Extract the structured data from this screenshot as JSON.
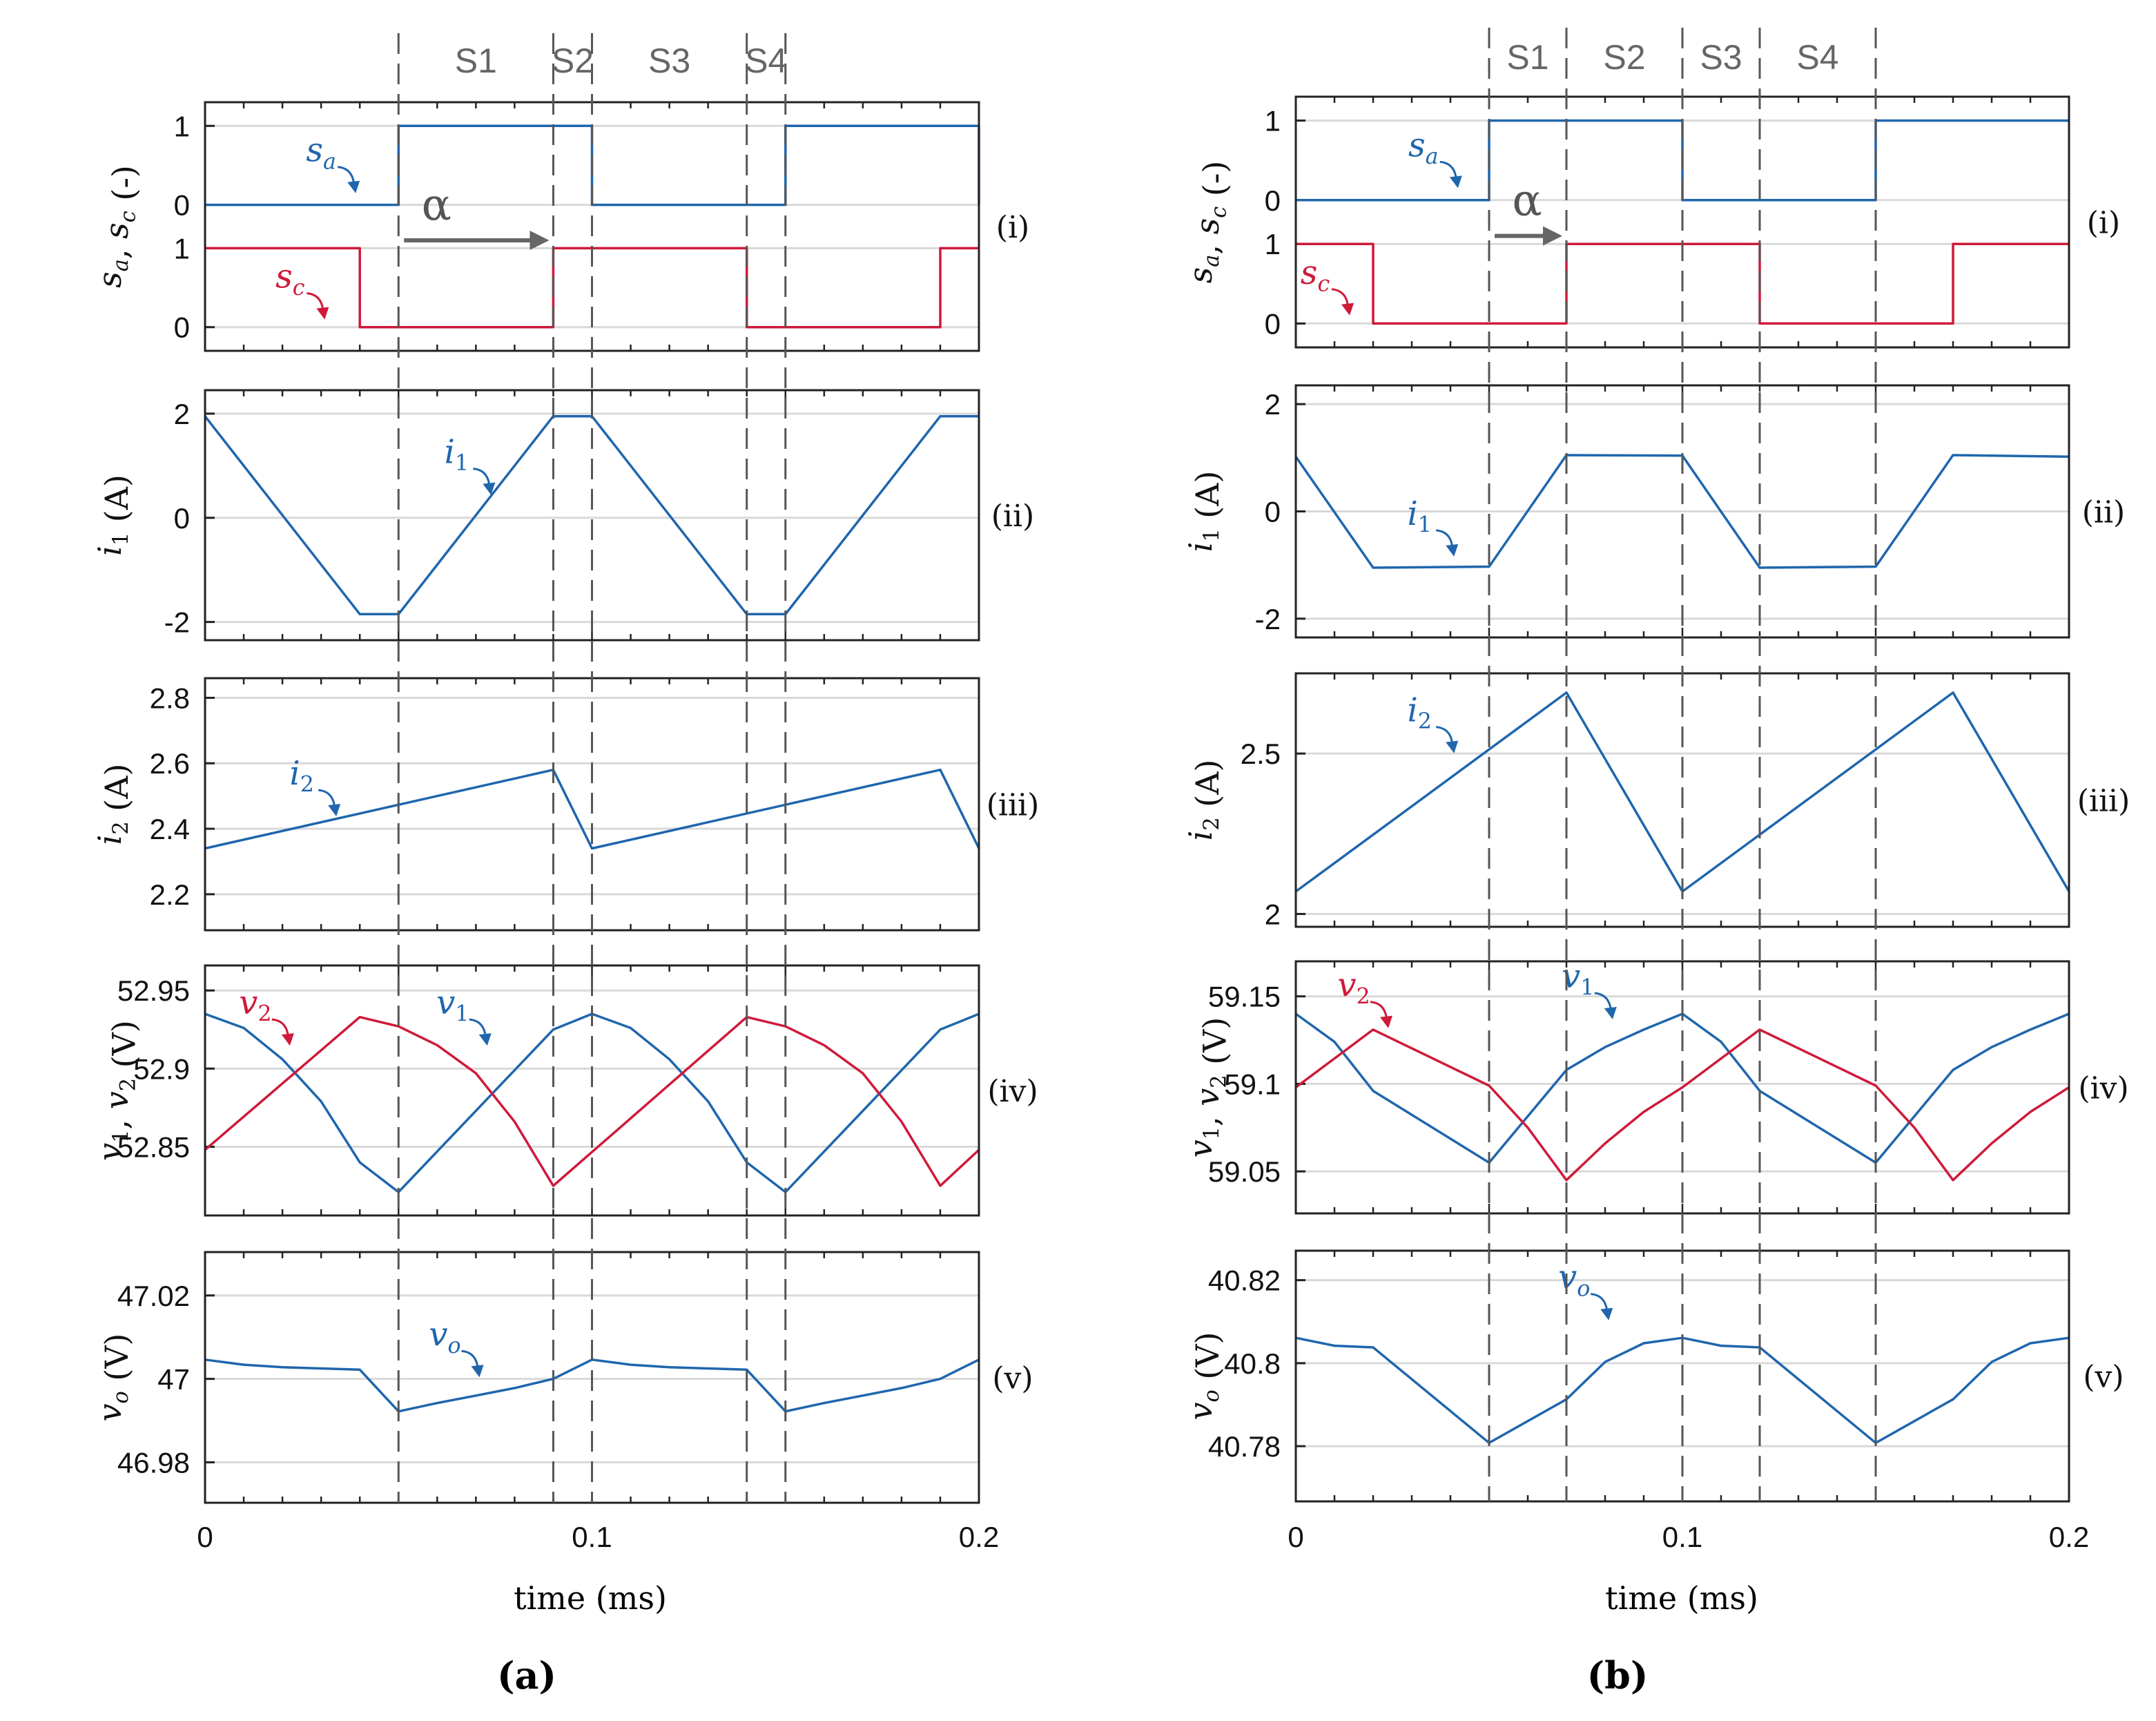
{
  "colors": {
    "blue": "#1f66ad",
    "red": "#cf1a3a",
    "grid": "#d9d9d9",
    "axis": "#222222",
    "divider": "#555555",
    "stage": "#666666"
  },
  "figure": {
    "caption_a": "(a)",
    "caption_b": "(b)",
    "xlabel": "time (ms)"
  },
  "chart_data": [
    {
      "panel": "a",
      "type": "line",
      "x_ticks": [
        0,
        0.1,
        0.2
      ],
      "x_tick_labels": [
        "0",
        "0.1",
        "0.2"
      ],
      "xlim": [
        0,
        0.2
      ],
      "dividers": [
        0.05,
        0.09,
        0.1,
        0.14,
        0.15
      ],
      "stages": [
        {
          "label": "S1",
          "x": 0.07
        },
        {
          "label": "S2",
          "x": 0.095
        },
        {
          "label": "S3",
          "x": 0.12
        },
        {
          "label": "S4",
          "x": 0.145
        }
      ],
      "alpha": {
        "label": "α",
        "x0": 0.05,
        "x1": 0.09
      },
      "rows": [
        {
          "id": "switch",
          "tag": "(i)",
          "ylabel": "sa, sc (-)",
          "kind": "switch",
          "series": [
            {
              "name": "sa",
              "label": "s_a",
              "color": "blue",
              "y_offset": 1.55,
              "x": [
                0,
                0.05,
                0.05,
                0.1,
                0.1,
                0.15,
                0.15,
                0.2,
                0.2
              ],
              "y": [
                0,
                0,
                1,
                1,
                0,
                0,
                1,
                1,
                0
              ]
            },
            {
              "name": "sc",
              "label": "s_c",
              "color": "red",
              "y_offset": 0,
              "x": [
                0,
                0.04,
                0.04,
                0.09,
                0.09,
                0.14,
                0.14,
                0.19,
                0.19,
                0.2
              ],
              "y": [
                1,
                1,
                0,
                0,
                1,
                1,
                0,
                0,
                1,
                1
              ]
            }
          ],
          "y_ticks": [
            {
              "v": 2.55,
              "l": "1"
            },
            {
              "v": 1.55,
              "l": "0"
            },
            {
              "v": 1,
              "l": "1"
            },
            {
              "v": 0,
              "l": "0"
            }
          ],
          "ylim": [
            -0.3,
            2.85
          ],
          "annotations": [
            {
              "series": "sa",
              "text": "s_a",
              "x": 0.03,
              "y": 2.1
            },
            {
              "series": "sc",
              "text": "s_c",
              "x": 0.022,
              "y": 0.5
            }
          ]
        },
        {
          "id": "i1",
          "tag": "(ii)",
          "ylabel": "i1 (A)",
          "kind": "line",
          "series": [
            {
              "name": "i1",
              "label": "i_1",
              "color": "blue",
              "x": [
                0,
                0.04,
                0.05,
                0.09,
                0.1,
                0.14,
                0.15,
                0.19,
                0.2
              ],
              "y": [
                1.95,
                -1.85,
                -1.85,
                1.95,
                1.95,
                -1.85,
                -1.85,
                1.95,
                1.95
              ]
            }
          ],
          "y_ticks": [
            {
              "v": 2,
              "l": "2"
            },
            {
              "v": 0,
              "l": "0"
            },
            {
              "v": -2,
              "l": "-2"
            }
          ],
          "ylim": [
            -2.35,
            2.45
          ],
          "annotations": [
            {
              "series": "i1",
              "text": "i_1",
              "x": 0.065,
              "y": 1.05
            }
          ]
        },
        {
          "id": "i2",
          "tag": "(iii)",
          "ylabel": "i2 (A)",
          "kind": "line",
          "series": [
            {
              "name": "i2",
              "label": "i_2",
              "color": "blue",
              "x": [
                0,
                0.09,
                0.1,
                0.19,
                0.2
              ],
              "y": [
                2.34,
                2.58,
                2.34,
                2.58,
                2.34
              ]
            }
          ],
          "y_ticks": [
            {
              "v": 2.8,
              "l": "2.8"
            },
            {
              "v": 2.6,
              "l": "2.6"
            },
            {
              "v": 2.4,
              "l": "2.4"
            },
            {
              "v": 2.2,
              "l": "2.2"
            }
          ],
          "ylim": [
            2.09,
            2.86
          ],
          "annotations": [
            {
              "series": "i2",
              "text": "i_2",
              "x": 0.025,
              "y": 2.535
            }
          ]
        },
        {
          "id": "v",
          "tag": "(iv)",
          "ylabel": "v1, v2 (V)",
          "kind": "line",
          "series": [
            {
              "name": "v1",
              "label": "v_1",
              "color": "blue",
              "x": [
                0,
                0.01,
                0.02,
                0.03,
                0.04,
                0.05,
                0.09,
                0.1,
                0.11,
                0.12,
                0.13,
                0.14,
                0.15,
                0.19,
                0.2
              ],
              "y": [
                52.935,
                52.926,
                52.906,
                52.879,
                52.84,
                52.821,
                52.925,
                52.935,
                52.926,
                52.906,
                52.879,
                52.84,
                52.821,
                52.925,
                52.935
              ]
            },
            {
              "name": "v2",
              "label": "v_2",
              "color": "red",
              "x": [
                0,
                0.04,
                0.05,
                0.06,
                0.07,
                0.08,
                0.09,
                0.14,
                0.15,
                0.16,
                0.17,
                0.18,
                0.19,
                0.2
              ],
              "y": [
                52.848,
                52.933,
                52.927,
                52.915,
                52.897,
                52.866,
                52.825,
                52.933,
                52.927,
                52.915,
                52.897,
                52.866,
                52.825,
                52.848
              ]
            }
          ],
          "y_ticks": [
            {
              "v": 52.95,
              "l": "52.95"
            },
            {
              "v": 52.9,
              "l": "52.9"
            },
            {
              "v": 52.85,
              "l": "52.85"
            }
          ],
          "ylim": [
            52.806,
            52.966
          ],
          "annotations": [
            {
              "series": "v2",
              "text": "v_2",
              "x": 0.013,
              "y": 52.935
            },
            {
              "series": "v1",
              "text": "v_1",
              "x": 0.064,
              "y": 52.935
            }
          ]
        },
        {
          "id": "vo",
          "tag": "(v)",
          "ylabel": "vo (V)",
          "kind": "line",
          "series": [
            {
              "name": "vo",
              "label": "v_o",
              "color": "blue",
              "x": [
                0,
                0.01,
                0.02,
                0.03,
                0.04,
                0.05,
                0.06,
                0.07,
                0.08,
                0.09,
                0.1,
                0.11,
                0.12,
                0.13,
                0.14,
                0.15,
                0.16,
                0.17,
                0.18,
                0.19,
                0.2
              ],
              "y": [
                47.0046,
                47.0034,
                47.0028,
                47.0025,
                47.0022,
                46.9922,
                46.9942,
                46.996,
                46.9978,
                47.0,
                47.0046,
                47.0034,
                47.0028,
                47.0025,
                47.0022,
                46.9922,
                46.9942,
                46.996,
                46.9978,
                47.0,
                47.0046
              ]
            }
          ],
          "y_ticks": [
            {
              "v": 47.02,
              "l": "47.02"
            },
            {
              "v": 47,
              "l": "47"
            },
            {
              "v": 46.98,
              "l": "46.98"
            }
          ],
          "ylim": [
            46.9703,
            47.0304
          ],
          "annotations": [
            {
              "series": "vo",
              "text": "v_o",
              "x": 0.062,
              "y": 47.008
            }
          ]
        }
      ]
    },
    {
      "panel": "b",
      "type": "line",
      "x_ticks": [
        0,
        0.1,
        0.2
      ],
      "x_tick_labels": [
        "0",
        "0.1",
        "0.2"
      ],
      "xlim": [
        0,
        0.2
      ],
      "dividers": [
        0.05,
        0.07,
        0.1,
        0.12,
        0.15
      ],
      "stages": [
        {
          "label": "S1",
          "x": 0.06
        },
        {
          "label": "S2",
          "x": 0.085
        },
        {
          "label": "S3",
          "x": 0.11
        },
        {
          "label": "S4",
          "x": 0.135
        }
      ],
      "alpha": {
        "label": "α",
        "x0": 0.05,
        "x1": 0.07
      },
      "rows": [
        {
          "id": "switch",
          "tag": "(i)",
          "ylabel": "sa, sc (-)",
          "kind": "switch",
          "series": [
            {
              "name": "sa",
              "label": "s_a",
              "color": "blue",
              "y_offset": 1.55,
              "x": [
                0,
                0.05,
                0.05,
                0.1,
                0.1,
                0.15,
                0.15,
                0.2
              ],
              "y": [
                0,
                0,
                1,
                1,
                0,
                0,
                1,
                1
              ]
            },
            {
              "name": "sc",
              "label": "s_c",
              "color": "red",
              "y_offset": 0,
              "x": [
                0,
                0.02,
                0.02,
                0.07,
                0.07,
                0.12,
                0.12,
                0.17,
                0.17,
                0.2
              ],
              "y": [
                1,
                1,
                0,
                0,
                1,
                1,
                0,
                0,
                1,
                1
              ]
            }
          ],
          "y_ticks": [
            {
              "v": 2.55,
              "l": "1"
            },
            {
              "v": 1.55,
              "l": "0"
            },
            {
              "v": 1,
              "l": "1"
            },
            {
              "v": 0,
              "l": "0"
            }
          ],
          "ylim": [
            -0.3,
            2.85
          ],
          "annotations": [
            {
              "series": "sa",
              "text": "s_a",
              "x": 0.033,
              "y": 2.1
            },
            {
              "series": "sc",
              "text": "s_c",
              "x": 0.005,
              "y": 0.5
            }
          ]
        },
        {
          "id": "i1",
          "tag": "(ii)",
          "ylabel": "i1 (A)",
          "kind": "line",
          "series": [
            {
              "name": "i1",
              "label": "i_1",
              "color": "blue",
              "x": [
                0,
                0.02,
                0.05,
                0.07,
                0.1,
                0.12,
                0.15,
                0.17,
                0.2
              ],
              "y": [
                1.02,
                -1.05,
                -1.03,
                1.05,
                1.04,
                -1.05,
                -1.03,
                1.05,
                1.02
              ]
            }
          ],
          "y_ticks": [
            {
              "v": 2,
              "l": "2"
            },
            {
              "v": 0,
              "l": "0"
            },
            {
              "v": -2,
              "l": "-2"
            }
          ],
          "ylim": [
            -2.35,
            2.35
          ],
          "annotations": [
            {
              "series": "i1",
              "text": "i_1",
              "x": 0.032,
              "y": -0.25
            }
          ]
        },
        {
          "id": "i2",
          "tag": "(iii)",
          "ylabel": "i2 (A)",
          "kind": "line",
          "series": [
            {
              "name": "i2",
              "label": "i_2",
              "color": "blue",
              "x": [
                0,
                0.07,
                0.1,
                0.17,
                0.2
              ],
              "y": [
                2.07,
                2.69,
                2.07,
                2.69,
                2.07
              ]
            }
          ],
          "y_ticks": [
            {
              "v": 2.5,
              "l": "2.5"
            },
            {
              "v": 2,
              "l": "2"
            }
          ],
          "ylim": [
            1.96,
            2.75
          ],
          "annotations": [
            {
              "series": "i2",
              "text": "i_2",
              "x": 0.032,
              "y": 2.6
            }
          ]
        },
        {
          "id": "v",
          "tag": "(iv)",
          "ylabel": "v1, v2 (V)",
          "kind": "line",
          "series": [
            {
              "name": "v1",
              "label": "v_1",
              "color": "blue",
              "x": [
                0,
                0.01,
                0.02,
                0.05,
                0.07,
                0.08,
                0.09,
                0.1,
                0.11,
                0.12,
                0.15,
                0.17,
                0.18,
                0.19,
                0.2
              ],
              "y": [
                59.14,
                59.124,
                59.096,
                59.055,
                59.108,
                59.121,
                59.131,
                59.14,
                59.124,
                59.096,
                59.055,
                59.108,
                59.121,
                59.131,
                59.14
              ]
            },
            {
              "name": "v2",
              "label": "v_2",
              "color": "red",
              "x": [
                0,
                0.02,
                0.05,
                0.06,
                0.07,
                0.08,
                0.09,
                0.1,
                0.12,
                0.15,
                0.16,
                0.17,
                0.18,
                0.19,
                0.2
              ],
              "y": [
                59.098,
                59.131,
                59.099,
                59.075,
                59.045,
                59.066,
                59.084,
                59.098,
                59.131,
                59.099,
                59.075,
                59.045,
                59.066,
                59.084,
                59.098
              ]
            }
          ],
          "y_ticks": [
            {
              "v": 59.15,
              "l": "59.15"
            },
            {
              "v": 59.1,
              "l": "59.1"
            },
            {
              "v": 59.05,
              "l": "59.05"
            }
          ],
          "ylim": [
            59.026,
            59.17
          ],
          "annotations": [
            {
              "series": "v2",
              "text": "v_2",
              "x": 0.015,
              "y": 59.15
            },
            {
              "series": "v1",
              "text": "v_1",
              "x": 0.073,
              "y": 59.155
            }
          ]
        },
        {
          "id": "vo",
          "tag": "(v)",
          "ylabel": "vo (V)",
          "kind": "line",
          "series": [
            {
              "name": "vo",
              "label": "v_o",
              "color": "blue",
              "x": [
                0,
                0.01,
                0.02,
                0.05,
                0.07,
                0.08,
                0.09,
                0.1,
                0.11,
                0.12,
                0.15,
                0.17,
                0.18,
                0.19,
                0.2
              ],
              "y": [
                40.8061,
                40.8042,
                40.8038,
                40.7808,
                40.7913,
                40.8003,
                40.8048,
                40.8061,
                40.8042,
                40.8038,
                40.7808,
                40.7913,
                40.8003,
                40.8048,
                40.8061
              ]
            }
          ],
          "y_ticks": [
            {
              "v": 40.82,
              "l": "40.82"
            },
            {
              "v": 40.8,
              "l": "40.8"
            },
            {
              "v": 40.78,
              "l": "40.78"
            }
          ],
          "ylim": [
            40.7667,
            40.8271
          ],
          "annotations": [
            {
              "series": "vo",
              "text": "v_o",
              "x": 0.072,
              "y": 40.818
            }
          ]
        }
      ]
    }
  ]
}
